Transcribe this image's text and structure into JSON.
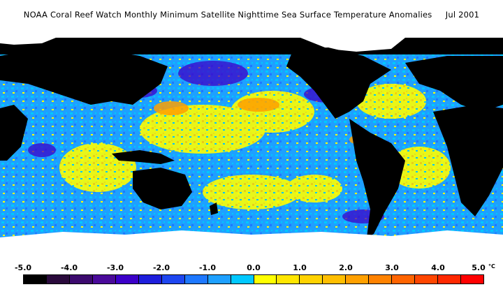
{
  "title": "NOAA Coral Reef Watch Monthly Minimum Satellite Nighttime Sea Surface Temperature Anomalies",
  "date": "Jul 2001",
  "colorbar": {
    "ticks": [
      "-5.0",
      "-4.0",
      "-3.0",
      "-2.0",
      "-1.0",
      "0.0",
      "1.0",
      "2.0",
      "3.0",
      "4.0",
      "5.0"
    ],
    "unit": "°C",
    "range": [
      -5.0,
      5.0
    ],
    "colors": [
      "#000000",
      "#2a0a3c",
      "#3c0a6e",
      "#4a0a9a",
      "#3c00c8",
      "#1e1edc",
      "#1e46f0",
      "#1e78ff",
      "#1ea0ff",
      "#00c8ff",
      "#ffff00",
      "#ffe600",
      "#ffd200",
      "#ffbe00",
      "#ffa000",
      "#ff8200",
      "#ff6400",
      "#ff4600",
      "#ff2800",
      "#ff0000"
    ]
  },
  "legend_colors": {
    "land": "#000000",
    "ice_no_data": "#ffffff",
    "ocean_dominant": "#1ea0ff"
  }
}
